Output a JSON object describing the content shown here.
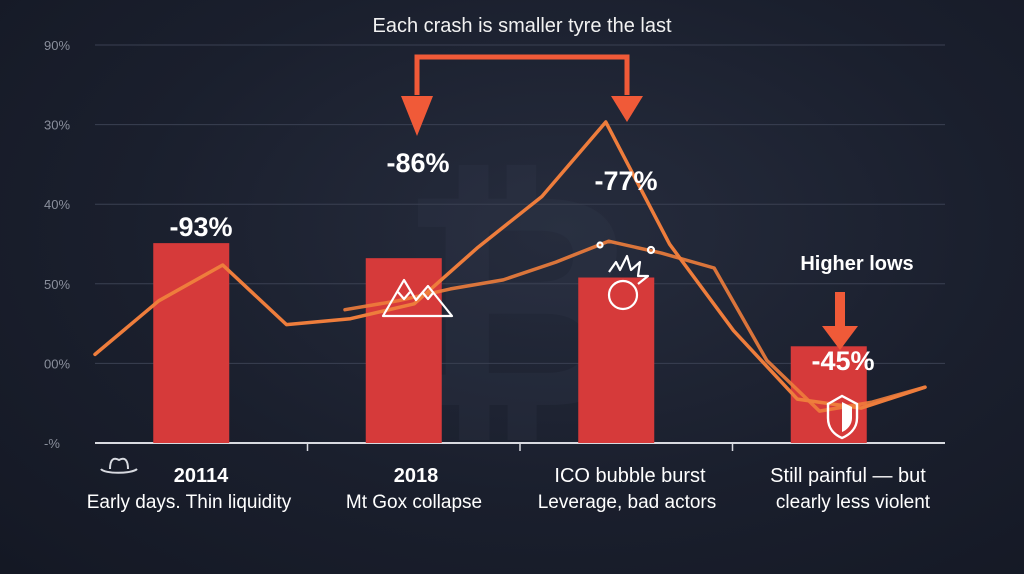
{
  "chart_data": {
    "type": "bar",
    "title": "Each crash is smaller tyre the last",
    "y_tick_labels": [
      "90%",
      "30%",
      "40%",
      "50%",
      "00%",
      "-%"
    ],
    "categories": [
      "20114",
      "2018",
      "ICO bubble burst",
      "Still painful — but"
    ],
    "category_sublabels": [
      "Early days. Thin liquidity",
      "Mt Gox collapse",
      "Leverage, bad actors",
      "clearly less violent"
    ],
    "values": [
      -93,
      -86,
      -77,
      -45
    ],
    "value_labels": [
      "-93%",
      "-86%",
      "-77%",
      "-45%"
    ],
    "ylim": [
      0,
      100
    ],
    "bar_color": "#d63a3a",
    "line_color": "#ee7d3c",
    "arrow_color": "#f05a38",
    "trend_line_primary": [
      22,
      40,
      52,
      32,
      34,
      39,
      58,
      75,
      100,
      59,
      30,
      7,
      4,
      11
    ],
    "trend_line_secondary": [
      37,
      40,
      44,
      47,
      53,
      60,
      56,
      51,
      20,
      3,
      6,
      11
    ],
    "annotation": "Higher lows"
  }
}
